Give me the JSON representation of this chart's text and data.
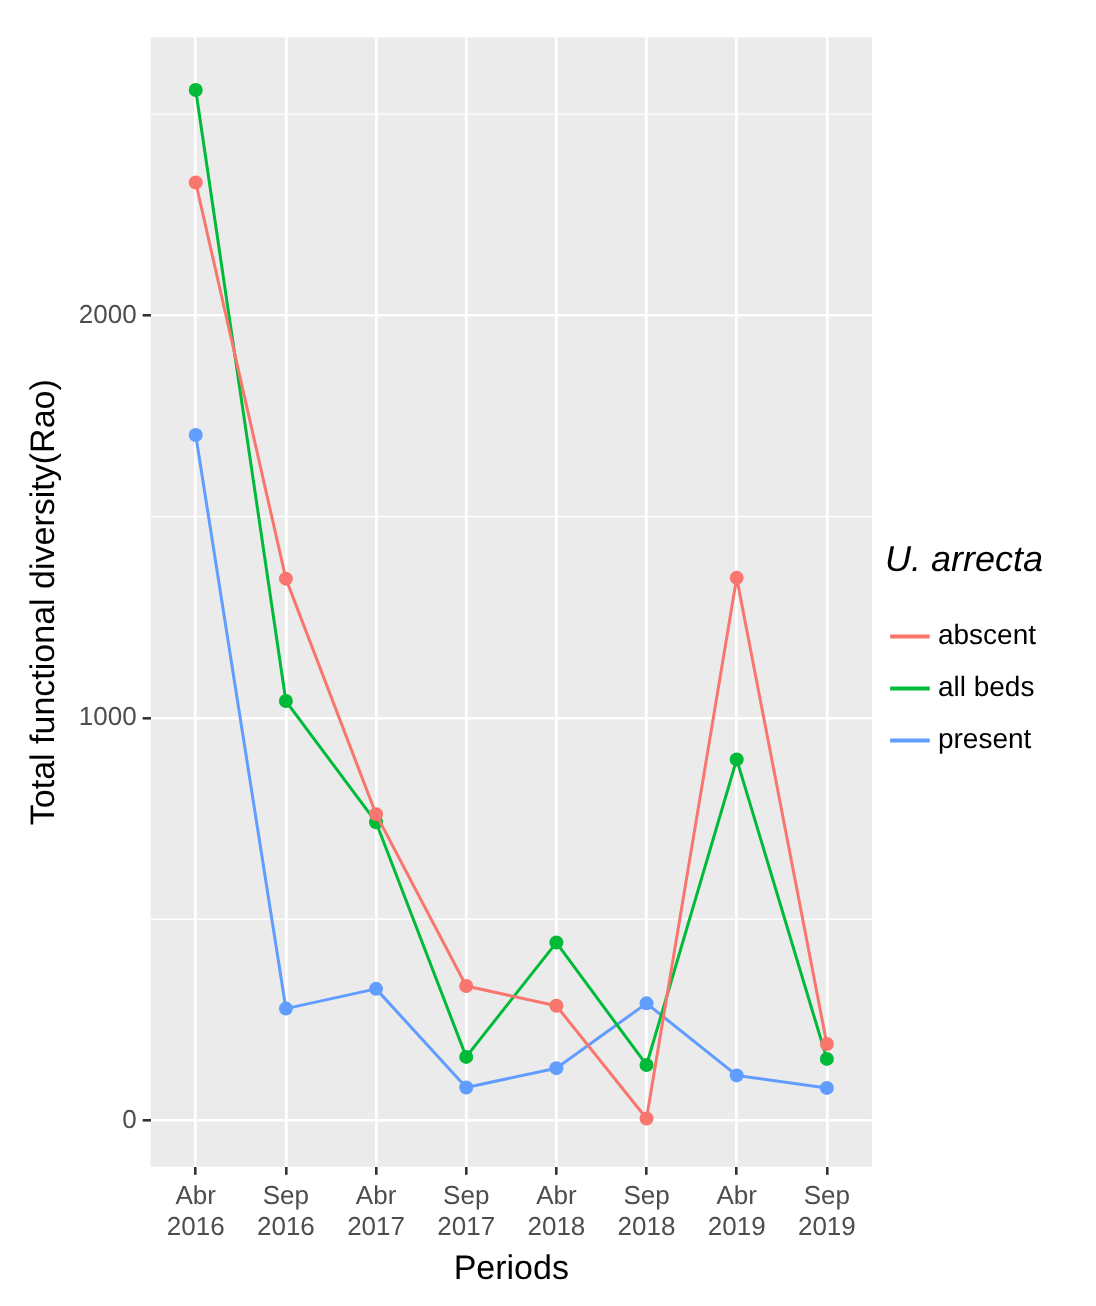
{
  "chart_data": {
    "type": "line",
    "xlabel": "Periods",
    "ylabel": "Total functional diversity(Rao)",
    "legend_title": "U. arrecta",
    "categories": [
      "Abr\n2016",
      "Sep\n2016",
      "Abr\n2017",
      "Sep\n2017",
      "Abr\n2018",
      "Sep\n2018",
      "Abr\n2019",
      "Sep\n2019"
    ],
    "series": [
      {
        "name": "abscent",
        "color": "#f8766d",
        "values": [
          2330,
          1346,
          761,
          334,
          285,
          5,
          1348,
          190
        ]
      },
      {
        "name": "all beds",
        "color": "#00ba38",
        "values": [
          2560,
          1042,
          741,
          158,
          442,
          138,
          897,
          153
        ]
      },
      {
        "name": "present",
        "color": "#619cff",
        "values": [
          1703,
          278,
          327,
          82,
          130,
          291,
          112,
          81
        ]
      }
    ],
    "ylim": [
      -115,
      2690
    ],
    "yticks": [
      0,
      1000,
      2000
    ],
    "grid": true,
    "legend": "right",
    "marker": "circle",
    "line_style": "solid"
  }
}
